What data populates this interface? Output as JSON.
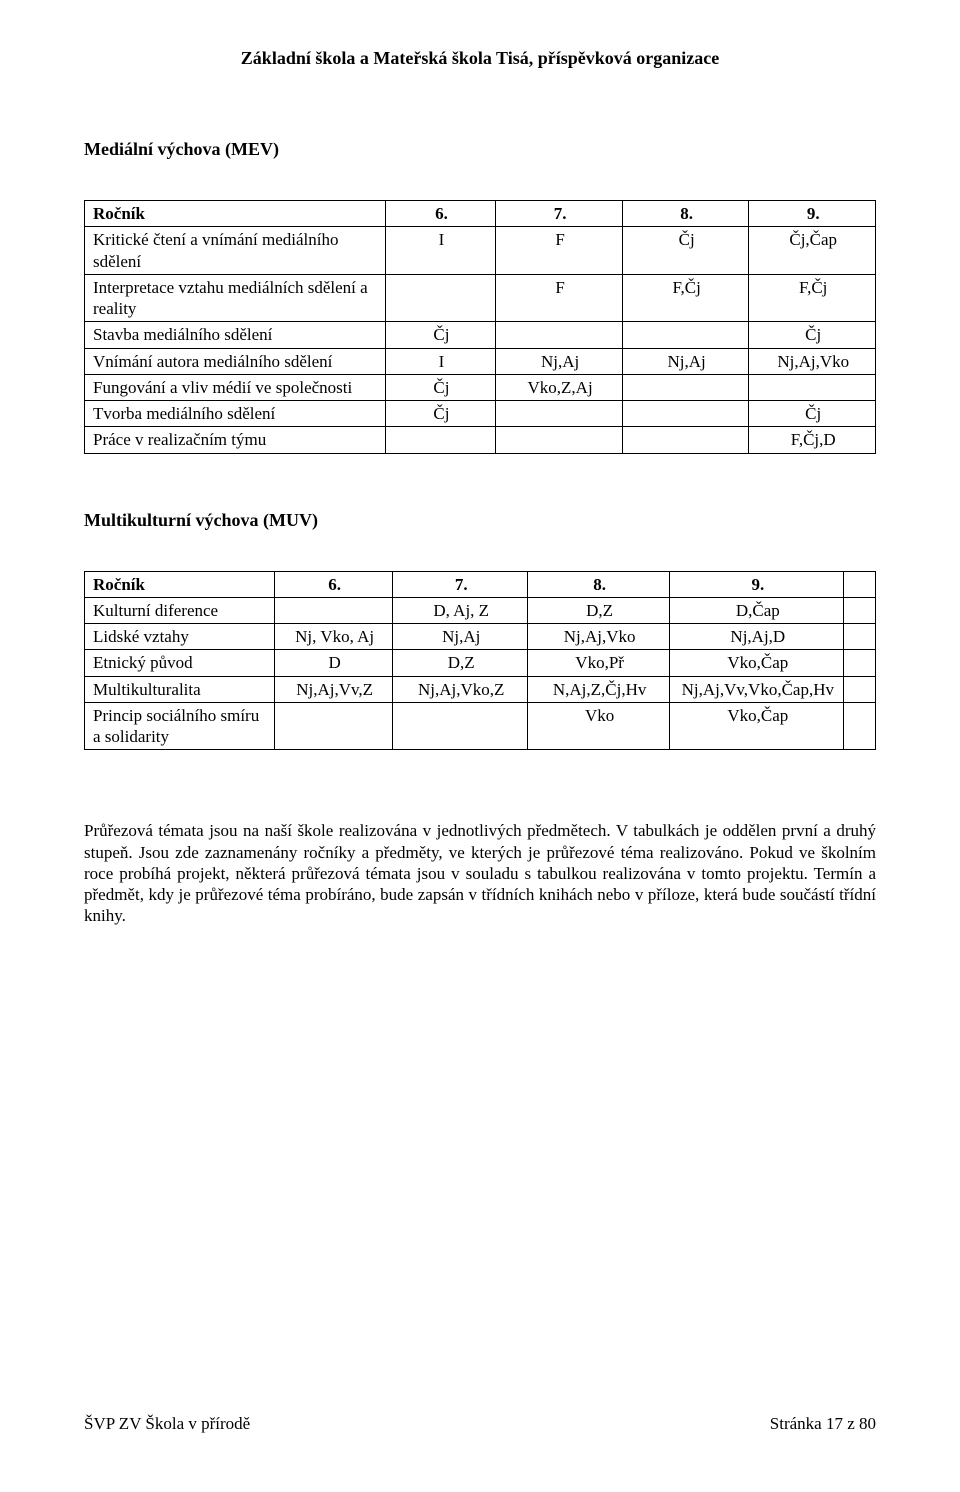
{
  "header": "Základní škola a Mateřská škola Tisá, příspěvková organizace",
  "section1_title": "Mediální výchova (MEV)",
  "section2_title": "Multikulturní výchova (MUV)",
  "table1": {
    "rows": [
      [
        "Ročník",
        "6.",
        "7.",
        "8.",
        "9."
      ],
      [
        "Kritické čtení a vnímání mediálního sdělení",
        "I",
        "F",
        "Čj",
        "Čj,Čap"
      ],
      [
        "Interpretace vztahu mediálních sdělení a reality",
        "",
        "F",
        "F,Čj",
        "F,Čj"
      ],
      [
        "Stavba mediálního sdělení",
        "Čj",
        "",
        "",
        "Čj"
      ],
      [
        "Vnímání autora mediálního sdělení",
        "I",
        "Nj,Aj",
        "Nj,Aj",
        "Nj,Aj,Vko"
      ],
      [
        "Fungování a vliv médií ve společnosti",
        "Čj",
        "Vko,Z,Aj",
        "",
        ""
      ],
      [
        "Tvorba mediálního sdělení",
        "Čj",
        "",
        "",
        "Čj"
      ],
      [
        "Práce v realizačním týmu",
        "",
        "",
        "",
        "F,Čj,D"
      ]
    ]
  },
  "table2": {
    "rows": [
      [
        "Ročník",
        "6.",
        "7.",
        "8.",
        "9.",
        ""
      ],
      [
        "Kulturní diference",
        "",
        "D, Aj, Z",
        "D,Z",
        "D,Čap",
        ""
      ],
      [
        "Lidské vztahy",
        "Nj, Vko, Aj",
        "Nj,Aj",
        "Nj,Aj,Vko",
        "Nj,Aj,D",
        ""
      ],
      [
        "Etnický původ",
        "D",
        "D,Z",
        "Vko,Př",
        "Vko,Čap",
        ""
      ],
      [
        "Multikulturalita",
        "Nj,Aj,Vv,Z",
        "Nj,Aj,Vko,Z",
        "N,Aj,Z,Čj,Hv",
        "Nj,Aj,Vv,Vko,Čap,Hv",
        ""
      ],
      [
        "Princip sociálního smíru a solidarity",
        "",
        "",
        "Vko",
        "Vko,Čap",
        ""
      ]
    ]
  },
  "paragraph": "Průřezová témata jsou na naší škole realizována v jednotlivých předmětech. V tabulkách je oddělen první a druhý stupeň. Jsou zde zaznamenány ročníky a předměty, ve kterých je průřezové téma realizováno. Pokud ve školním roce probíhá projekt, některá průřezová témata jsou v souladu s tabulkou realizována v tomto projektu. Termín a předmět, kdy je průřezové téma probíráno, bude zapsán v třídních knihách nebo v příloze, která bude součástí třídní knihy.",
  "footer_left": "ŠVP ZV Škola v přírodě",
  "footer_right": "Stránka 17  z 80"
}
